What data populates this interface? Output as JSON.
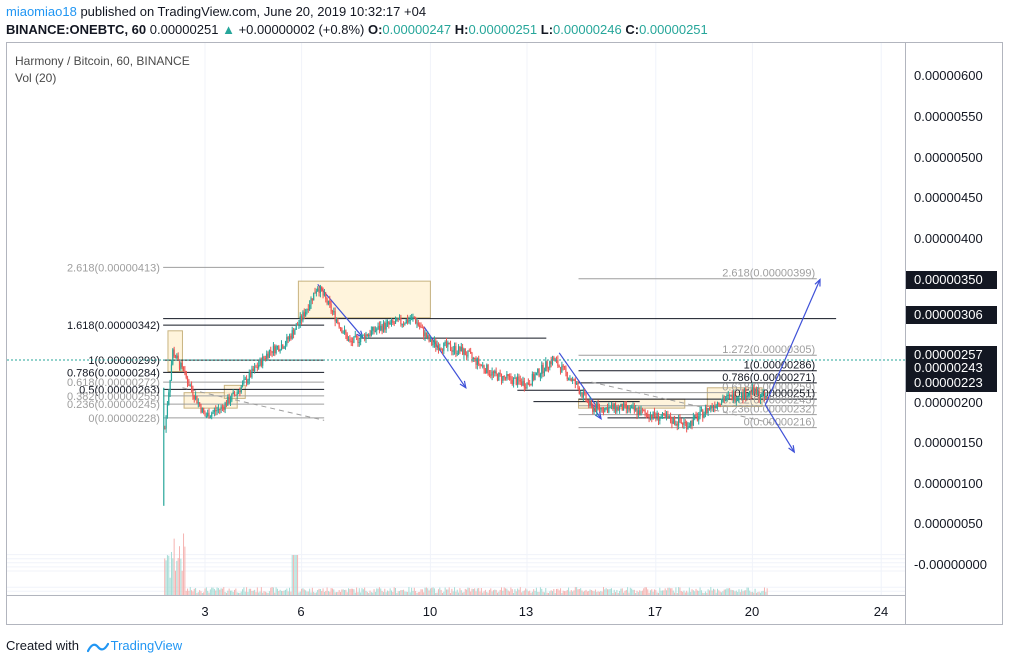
{
  "header": {
    "author": "miaomiao18",
    "published_text": "published on TradingView.com, June 20, 2019 10:32:17 +04",
    "symbol": "BINANCE:ONEBTC, 60",
    "last_price": "0.00000251",
    "change": "+0.00000002 (+0.8%)",
    "open_label": "O:",
    "open": "0.00000247",
    "high_label": "H:",
    "high": "0.00000251",
    "low_label": "L:",
    "low": "0.00000246",
    "close_label": "C:",
    "close": "0.00000251"
  },
  "legend": {
    "title": "Harmony / Bitcoin, 60, BINANCE",
    "volume": "Vol (20)"
  },
  "price_axis": {
    "ticks": [
      "0.00000600",
      "0.00000550",
      "0.00000500",
      "0.00000450",
      "0.00000400",
      "0.00000150",
      "0.00000100",
      "0.00000050",
      "-0.00000000"
    ],
    "badges": [
      "0.00000350",
      "0.00000306",
      "0.00000257",
      "0.00000243",
      "0.00000223",
      "0.00000200"
    ]
  },
  "time_axis": {
    "ticks": [
      "3",
      "6",
      "10",
      "13",
      "17",
      "20",
      "24"
    ]
  },
  "fib_left": [
    "2.618(0.00000413)",
    "1.618(0.00000342)",
    "1(0.00000299)",
    "0.786(0.00000284)",
    "0.618(0.00000272)",
    "0.5(0.00000263)",
    "0.382(0.00000255)",
    "0.236(0.00000245)",
    "0(0.00000228)"
  ],
  "fib_right": [
    "2.618(0.00000399)",
    "1.272(0.00000305)",
    "1(0.00000286)",
    "0.786(0.00000271)",
    "0.618(0.00000259)",
    "0.5(0.00000251)",
    "0.382(0.00000243)",
    "0.236(0.00000232)",
    "0(0.00000216)"
  ],
  "chart_data": {
    "type": "candlestick",
    "title": "Harmony / Bitcoin, 60, BINANCE",
    "x_ticks": [
      "3",
      "6",
      "10",
      "13",
      "17",
      "20",
      "24"
    ],
    "y_range": [
      -4e-08,
      6.25e-06
    ],
    "close_path": [
      {
        "x": 1.75,
        "y": 2.15e-06
      },
      {
        "x": 2.0,
        "y": 3.1e-06
      },
      {
        "x": 2.5,
        "y": 2.7e-06
      },
      {
        "x": 3.0,
        "y": 2.3e-06
      },
      {
        "x": 3.5,
        "y": 2.4e-06
      },
      {
        "x": 4.0,
        "y": 2.6e-06
      },
      {
        "x": 5.0,
        "y": 3.1e-06
      },
      {
        "x": 5.5,
        "y": 3.2e-06
      },
      {
        "x": 6.0,
        "y": 3.5e-06
      },
      {
        "x": 6.5,
        "y": 3.9e-06
      },
      {
        "x": 7.5,
        "y": 3.2e-06
      },
      {
        "x": 8.5,
        "y": 3.4e-06
      },
      {
        "x": 9.5,
        "y": 3.5e-06
      },
      {
        "x": 10.0,
        "y": 3.2e-06
      },
      {
        "x": 11.0,
        "y": 3.1e-06
      },
      {
        "x": 12.0,
        "y": 2.8e-06
      },
      {
        "x": 13.0,
        "y": 2.7e-06
      },
      {
        "x": 13.8,
        "y": 3e-06
      },
      {
        "x": 14.5,
        "y": 2.7e-06
      },
      {
        "x": 15.0,
        "y": 2.4e-06
      },
      {
        "x": 16.0,
        "y": 2.4e-06
      },
      {
        "x": 17.0,
        "y": 2.3e-06
      },
      {
        "x": 18.0,
        "y": 2.2e-06
      },
      {
        "x": 19.0,
        "y": 2.5e-06
      },
      {
        "x": 20.0,
        "y": 2.6e-06
      },
      {
        "x": 20.5,
        "y": 2.5e-06
      }
    ],
    "volume_label": "Vol (20)"
  },
  "footer": {
    "created_with": "Created with",
    "brand": "TradingView"
  },
  "colors": {
    "up": "#26a69a",
    "down": "#ef5350",
    "accent": "#2196f3",
    "box_fill": "#fff3d6",
    "arrow": "#3f51d8"
  }
}
